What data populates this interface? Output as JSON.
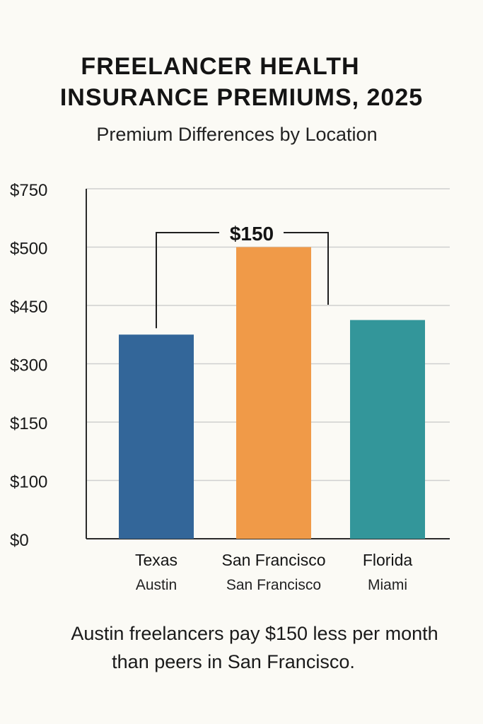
{
  "chart_data": {
    "type": "bar",
    "title_lines": [
      "FREELANCER HEALTH",
      "INSURANCE PREMIUMS, 2025"
    ],
    "subtitle": "Premium Differences by Location",
    "y_ticks": [
      "$750",
      "$500",
      "$450",
      "$300",
      "$150",
      "$100",
      "$0"
    ],
    "categories": [
      {
        "label": "Texas",
        "sublabel": "Austin",
        "value": 350,
        "color": "#336699"
      },
      {
        "label": "San Francisco",
        "sublabel": "San Francisco",
        "value": 500,
        "color": "#f09a48"
      },
      {
        "label": "Florida",
        "sublabel": "Miami",
        "value": 375,
        "color": "#33969a"
      }
    ],
    "annotation": {
      "label": "$150",
      "from": "Texas",
      "to": "San Francisco"
    },
    "footnote_lines": [
      "Austin freelancers pay $150 less per month",
      "than peers in San Francisco."
    ]
  }
}
